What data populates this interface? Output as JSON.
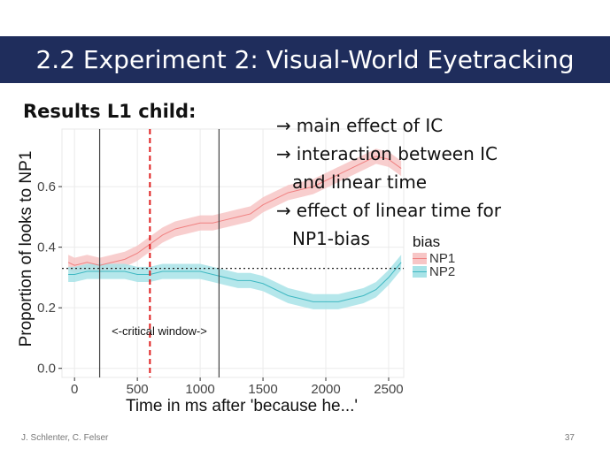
{
  "slide": {
    "title": "2.2 Experiment 2: Visual-World Eyetracking",
    "subtitle": "Results L1 child:",
    "bullets": [
      {
        "arrow": "→",
        "text": "main effect of IC"
      },
      {
        "arrow": "→",
        "text": "interaction between IC"
      },
      {
        "arrow": "",
        "text": "and linear time"
      },
      {
        "arrow": "→",
        "text": "effect of linear time for"
      },
      {
        "arrow": "",
        "text": "NP1-bias"
      }
    ],
    "footer_authors": "J. Schlenter, C. Felser",
    "page_number": "37"
  },
  "colors": {
    "title_bar": "#1f2d5c",
    "np1": "#f08080",
    "np1_band": "#f7c6c6",
    "np2": "#3fb8c2",
    "np2_band": "#a8e3e7",
    "critical_line": "#e02020"
  },
  "chart_data": {
    "type": "line",
    "xlabel": "Time in ms after 'because he...'",
    "ylabel": "Proportion of looks to NP1",
    "x_ticks": [
      0,
      500,
      1000,
      1500,
      2000,
      2500
    ],
    "y_ticks": [
      0.0,
      0.2,
      0.4,
      0.6
    ],
    "y_tick_labels": [
      "0.0",
      "0.2",
      "0.4",
      "0.6"
    ],
    "xlim": [
      -100,
      2620
    ],
    "ylim": [
      -0.03,
      0.79
    ],
    "grid": true,
    "legend": {
      "title": "bias",
      "placement": "right",
      "entries": [
        "NP1",
        "NP2"
      ]
    },
    "reference_lines": {
      "horizontal_dotted": 0.33,
      "vertical_solid": [
        200,
        1150
      ],
      "vertical_dashed": 600
    },
    "annotation": "<-critical window->",
    "series": [
      {
        "name": "NP1",
        "x": [
          -50,
          0,
          100,
          200,
          300,
          400,
          500,
          600,
          700,
          800,
          900,
          1000,
          1100,
          1200,
          1300,
          1400,
          1500,
          1600,
          1700,
          1800,
          1900,
          2000,
          2100,
          2200,
          2300,
          2400,
          2500,
          2600
        ],
        "y": [
          0.35,
          0.34,
          0.35,
          0.34,
          0.35,
          0.36,
          0.38,
          0.41,
          0.44,
          0.46,
          0.47,
          0.48,
          0.48,
          0.49,
          0.5,
          0.51,
          0.54,
          0.56,
          0.58,
          0.59,
          0.6,
          0.62,
          0.64,
          0.66,
          0.68,
          0.7,
          0.69,
          0.66
        ],
        "band": 0.025
      },
      {
        "name": "NP2",
        "x": [
          -50,
          0,
          100,
          200,
          300,
          400,
          500,
          600,
          700,
          800,
          900,
          1000,
          1100,
          1200,
          1300,
          1400,
          1500,
          1600,
          1700,
          1800,
          1900,
          2000,
          2100,
          2200,
          2300,
          2400,
          2500,
          2600
        ],
        "y": [
          0.31,
          0.31,
          0.32,
          0.32,
          0.32,
          0.32,
          0.31,
          0.31,
          0.32,
          0.32,
          0.32,
          0.32,
          0.31,
          0.3,
          0.29,
          0.29,
          0.28,
          0.26,
          0.24,
          0.23,
          0.22,
          0.22,
          0.22,
          0.23,
          0.24,
          0.26,
          0.3,
          0.35
        ],
        "band": 0.025
      }
    ]
  }
}
